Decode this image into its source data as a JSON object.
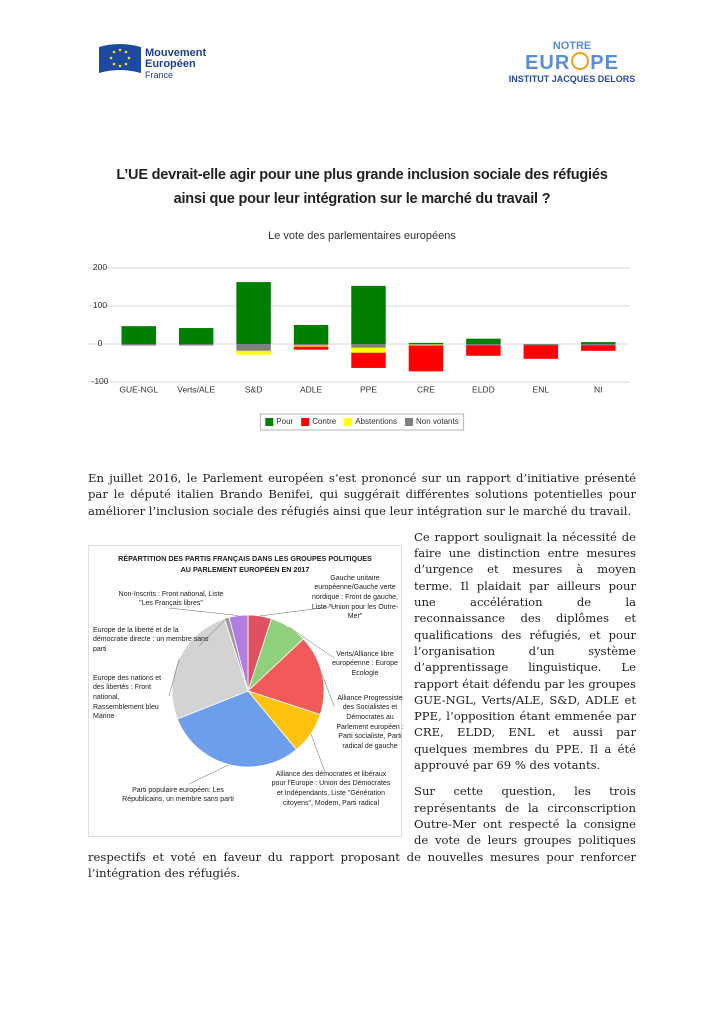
{
  "header": {
    "logo_left": {
      "line1": "Mouvement",
      "line2": "Européen",
      "line3": "France"
    },
    "logo_right": {
      "line1": "NOTRE",
      "line2a": "EUR",
      "line2b": "PE",
      "line3a": "INSTITUT",
      "line3b": "JACQUES DELORS"
    }
  },
  "title_lines": [
    "L’UE devrait-elle agir pour une plus grande inclusion sociale des réfugiés",
    "ainsi que pour leur intégration sur le marché du travail ?"
  ],
  "chart_data": [
    {
      "type": "bar",
      "stacked": true,
      "subtitle": "Le vote des parlementaires européens",
      "categories": [
        "GUE-NGL",
        "Verts/ALE",
        "S&D",
        "ADLE",
        "PPE",
        "CRE",
        "ELDD",
        "ENL",
        "NI"
      ],
      "series": [
        {
          "name": "Pour",
          "color": "#008000",
          "values": [
            47,
            42,
            163,
            50,
            153,
            3,
            14,
            0,
            5
          ]
        },
        {
          "name": "Contre",
          "color": "#ff0000",
          "values": [
            0,
            0,
            0,
            -8,
            -40,
            -68,
            -27,
            -36,
            -14
          ]
        },
        {
          "name": "Abstentions",
          "color": "#ffff00",
          "values": [
            0,
            0,
            -10,
            -3,
            -13,
            -2,
            0,
            0,
            0
          ]
        },
        {
          "name": "Non votants",
          "color": "#808080",
          "values": [
            -4,
            -4,
            -18,
            -4,
            -10,
            -2,
            -4,
            -3,
            -4
          ]
        }
      ],
      "ylim": [
        -100,
        200
      ],
      "yticks": [
        -100,
        0,
        100,
        200
      ],
      "grid": true,
      "legend_position": "bottom"
    },
    {
      "type": "pie",
      "title_lines": [
        "RÉPARTITION DES PARTIS FRANÇAIS DANS LES GROUPES POLITIQUES",
        "AU PARLEMENT EUROPÉEN EN 2017"
      ],
      "categories": [
        "Gauche unitaire européenne/Gauche verte nordique : Front de gauche, Liste \"Union pour les Outre-Mer\"",
        "Verts/Alliance libre européenne : Europe Ecologie",
        "Alliance Progressiste des Socialistes et Démocrates au Parlement européen : Parti socialiste, Parti radical de gauche",
        "Alliance des démocrates et libéraux pour l’Europe : Union des Démocrates et Indépendants, Liste \"Génération citoyens\", Modem, Parti radical",
        "Parti populaire européen: Les Républicains, un membre sans parti",
        "Europe des nations et des libertés : Front national, Rassemblement bleu Marine",
        "Europe de la liberté et de la démocratie directe : un membre sans parti",
        "Non-Inscrits : Front national, Liste \"Les Français libres\""
      ],
      "values": [
        5,
        8,
        17,
        9,
        30,
        26,
        1,
        4
      ],
      "colors": [
        "#e05060",
        "#8fd07a",
        "#f25a5a",
        "#ffc20e",
        "#6d9eeb",
        "#d3d3d3",
        "#9a9a9a",
        "#b07ee0"
      ]
    }
  ],
  "paragraphs": [
    "En juillet 2016, le Parlement européen s’est prononcé sur un rapport d’initiative présenté par le député italien Brando Benifei, qui suggérait différentes solutions potentielles pour améliorer l’inclusion sociale des réfugiés ainsi que leur intégration sur le marché du travail.",
    "Ce rapport soulignait la nécessité de faire une distinction entre mesures d’urgence et mesures à moyen terme. Il plaidait par ailleurs pour une accélération de la reconnaissance des diplômes et qualifications des réfugiés, et pour l’organisation d’un système d’apprentissage linguistique. Le rapport était défendu par les groupes GUE-NGL, Verts/ALE, S&D, ADLE et PPE, l’opposition étant emmenée par CRE, ELDD, ENL et aussi par quelques membres du PPE. Il a été approuvé par 69 % des votants.",
    "Sur cette question, les trois représentants de la circonscription Outre-Mer ont respecté la consigne de vote de leurs groupes politiques respectifs et voté en faveur du rapport proposant de nouvelles mesures pour renforcer l’intégration des réfugiés."
  ]
}
